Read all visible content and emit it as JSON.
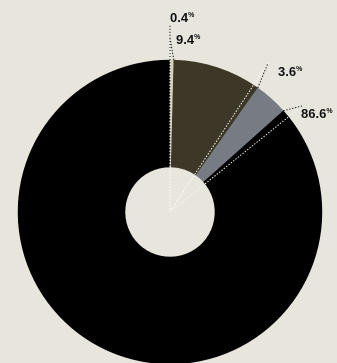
{
  "chart_data": {
    "type": "pie",
    "style": "donut",
    "categories": [
      "",
      "",
      "",
      ""
    ],
    "values": [
      0.4,
      9.4,
      3.6,
      86.6
    ],
    "labels": [
      "0.4",
      "9.4",
      "3.6",
      "86.6"
    ],
    "unit": "%",
    "colors": [
      "#d8d1b7",
      "#3c3726",
      "#777b83",
      "#000000"
    ],
    "background": "#e7e5dc",
    "title": "",
    "legend": "none",
    "label_style": "dotted leader lines to outer labels"
  }
}
